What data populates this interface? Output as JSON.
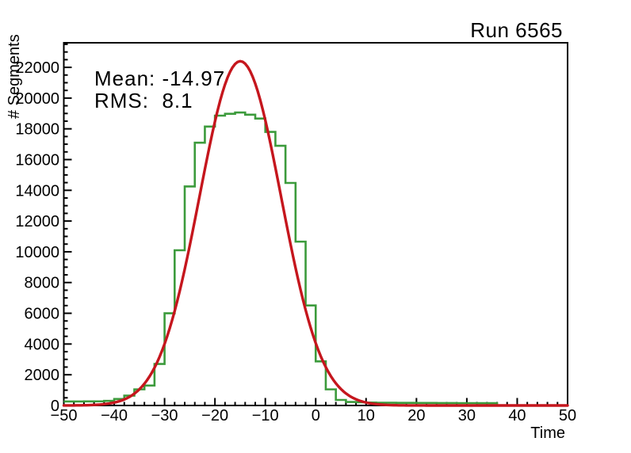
{
  "title": "Run 6565",
  "chart_data": {
    "type": "bar",
    "subtype": "histogram-with-gaussian-fit",
    "title": "Run 6565",
    "xlabel": "Time",
    "ylabel": "# Segments",
    "xlim": [
      -50,
      50
    ],
    "ylim": [
      0,
      23600
    ],
    "grid": false,
    "legend": "none",
    "x_major_tick_values": [
      -50,
      -40,
      -30,
      -20,
      -10,
      0,
      10,
      20,
      30,
      40,
      50
    ],
    "x_tick_labels": [
      "−50",
      "−40",
      "−30",
      "−20",
      "−10",
      "0",
      "10",
      "20",
      "30",
      "40",
      "50"
    ],
    "x_minor_step": 2,
    "y_major_tick_values": [
      0,
      2000,
      4000,
      6000,
      8000,
      10000,
      12000,
      14000,
      16000,
      18000,
      20000,
      22000
    ],
    "y_tick_labels": [
      "0",
      "2000",
      "4000",
      "6000",
      "8000",
      "10000",
      "12000",
      "14000",
      "16000",
      "18000",
      "20000",
      "22000"
    ],
    "y_minor_step": 500,
    "histogram": {
      "name": "time-distribution",
      "color": "#3c9b3c",
      "line_width": 2.6,
      "bin_start": -50,
      "bin_width": 2,
      "values": [
        260,
        260,
        265,
        270,
        300,
        420,
        640,
        1050,
        1300,
        2700,
        6000,
        10100,
        14250,
        17100,
        18150,
        18860,
        18980,
        19060,
        18920,
        18670,
        17800,
        16900,
        14480,
        10660,
        6510,
        2870,
        1050,
        360,
        230,
        210,
        190,
        180,
        175,
        170,
        170,
        165,
        165,
        160,
        160,
        155,
        155,
        150,
        150,
        0,
        0,
        0,
        0,
        0,
        0,
        0
      ]
    },
    "fit": {
      "name": "gaussian-fit",
      "color": "#c5161d",
      "line_width": 3.4,
      "amplitude": 22400,
      "mean": -14.97,
      "sigma": 8.1,
      "x_range": [
        -50,
        50
      ]
    },
    "annotations": [
      {
        "text": "Mean: -14.97"
      },
      {
        "text": "RMS:  8.1"
      }
    ]
  },
  "colors": {
    "background": "#ffffff",
    "frame": "#000000",
    "text": "#000000",
    "histogram": "#3c9b3c",
    "fit": "#c5161d"
  }
}
